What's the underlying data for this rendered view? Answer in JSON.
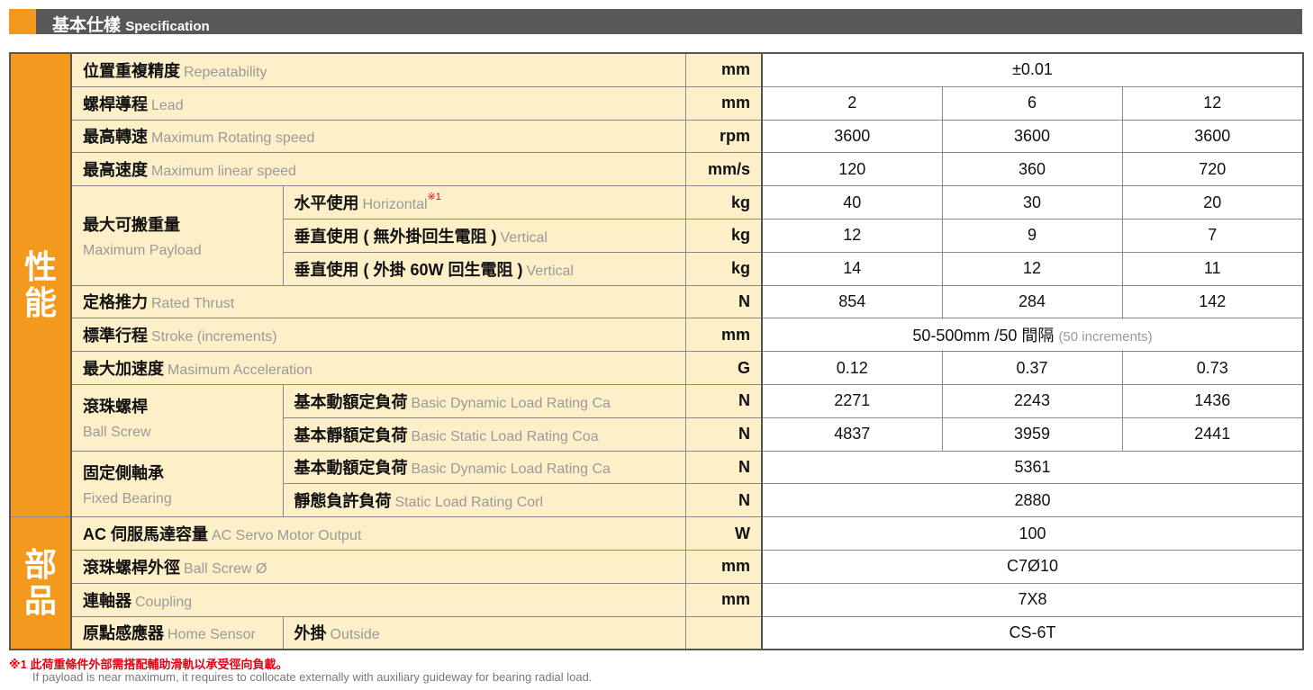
{
  "header": {
    "title_cn": "基本仕樣",
    "title_en": "Specification"
  },
  "colors": {
    "accent": "#f39a1e",
    "header_bg": "#58585a",
    "label_bg": "#fdefc8",
    "note": "#e60012"
  },
  "sections": [
    {
      "label": "性能"
    },
    {
      "label": "部品"
    }
  ],
  "groups": [
    {
      "cn": "最大可搬重量",
      "en": "Maximum Payload"
    },
    {
      "cn": "滾珠螺桿",
      "en": "Ball Screw"
    },
    {
      "cn": "固定側軸承",
      "en": "Fixed Bearing"
    }
  ],
  "rows": [
    {
      "cn": "位置重複精度",
      "en": "Repeatability",
      "unit": "mm",
      "span": "±0.01"
    },
    {
      "cn": "螺桿導程",
      "en": "Lead",
      "unit": "mm",
      "values": [
        "2",
        "6",
        "12"
      ]
    },
    {
      "cn": "最高轉速",
      "en": "Maximum Rotating speed",
      "unit": "rpm",
      "values": [
        "3600",
        "3600",
        "3600"
      ]
    },
    {
      "cn": "最高速度",
      "en": "Maximum linear speed",
      "unit": "mm/s",
      "values": [
        "120",
        "360",
        "720"
      ]
    },
    {
      "group": 0,
      "cn": "水平使用",
      "en": "Horizontal",
      "note": "※1",
      "unit": "kg",
      "values": [
        "40",
        "30",
        "20"
      ]
    },
    {
      "group": 0,
      "cn": "垂直使用 ( 無外掛回生電阻 )",
      "en": "Vertical",
      "unit": "kg",
      "values": [
        "12",
        "9",
        "7"
      ]
    },
    {
      "group": 0,
      "cn": "垂直使用 ( 外掛 60W 回生電阻 )",
      "en": "Vertical",
      "unit": "kg",
      "values": [
        "14",
        "12",
        "11"
      ]
    },
    {
      "cn": "定格推力",
      "en": "Rated Thrust",
      "unit": "N",
      "values": [
        "854",
        "284",
        "142"
      ]
    },
    {
      "cn": "標準行程",
      "en": "Stroke (increments)",
      "unit": "mm",
      "span": "50-500mm /50 間隔",
      "span_en": "(50 increments)"
    },
    {
      "cn": "最大加速度",
      "en": "Masimum Acceleration",
      "unit": "G",
      "values": [
        "0.12",
        "0.37",
        "0.73"
      ]
    },
    {
      "group": 1,
      "cn": "基本動額定負荷",
      "en": "Basic Dynamic Load Rating Ca",
      "unit": "N",
      "values": [
        "2271",
        "2243",
        "1436"
      ]
    },
    {
      "group": 1,
      "cn": "基本靜額定負荷",
      "en": "Basic Static Load Rating Coa",
      "unit": "N",
      "values": [
        "4837",
        "3959",
        "2441"
      ]
    },
    {
      "group": 2,
      "cn": "基本動額定負荷",
      "en": "Basic Dynamic Load Rating Ca",
      "unit": "N",
      "span": "5361"
    },
    {
      "group": 2,
      "cn": "靜態負許負荷",
      "en": "Static Load Rating Corl",
      "unit": "N",
      "span": "2880"
    },
    {
      "cn": "AC 伺服馬達容量",
      "en": "AC Servo Motor Output",
      "unit": "W",
      "span": "100"
    },
    {
      "cn": "滾珠螺桿外徑",
      "en": "Ball Screw Ø",
      "unit": "mm",
      "span": "C7Ø10"
    },
    {
      "cn": "連軸器",
      "en": "Coupling",
      "unit": "mm",
      "span": "7X8"
    },
    {
      "cn": "原點感應器",
      "en": "Home Sensor",
      "sub_cn": "外掛",
      "sub_en": "Outside",
      "unit": "",
      "span": "CS-6T"
    }
  ],
  "footnote": {
    "cn": "※1 此荷重條件外部需搭配輔助滑軌以承受徑向負載。",
    "en": "If payload is near maximum, it requires to collocate externally with auxiliary guideway for bearing radial load."
  }
}
